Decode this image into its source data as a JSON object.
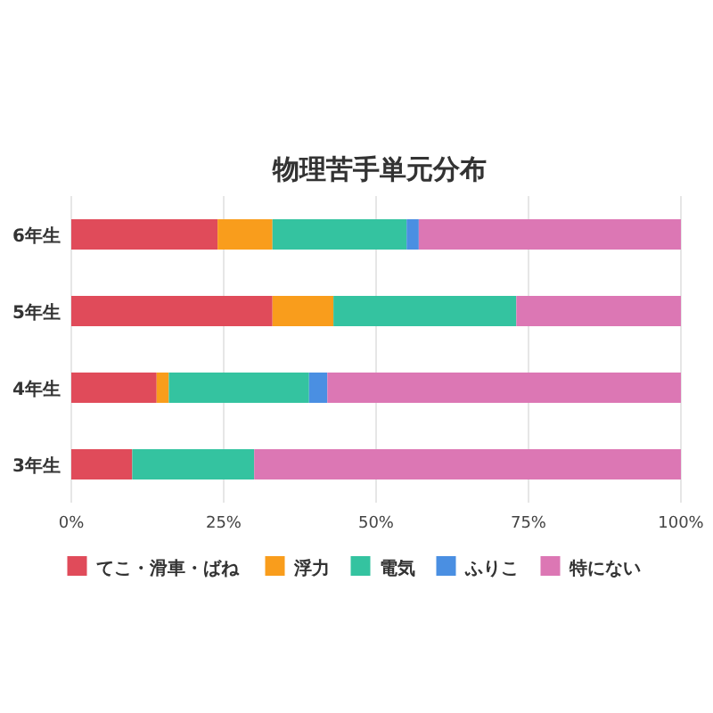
{
  "chart_data": {
    "type": "bar",
    "orientation": "horizontal",
    "stacked": true,
    "title": "物理苦手単元分布",
    "categories": [
      "6年生",
      "5年生",
      "4年生",
      "3年生"
    ],
    "series": [
      {
        "name": "てこ・滑車・ばね",
        "color": "#e04b5a",
        "values": [
          24,
          33,
          14,
          10
        ]
      },
      {
        "name": "浮力",
        "color": "#f99d1c",
        "values": [
          9,
          10,
          2,
          0
        ]
      },
      {
        "name": "電気",
        "color": "#34c3a0",
        "values": [
          22,
          30,
          23,
          20
        ]
      },
      {
        "name": "ふりこ",
        "color": "#4a8fe2",
        "values": [
          2,
          0,
          3,
          0
        ]
      },
      {
        "name": "特にない",
        "color": "#dc77b4",
        "values": [
          43,
          27,
          58,
          70
        ]
      }
    ],
    "xlim": [
      0,
      100
    ],
    "xticks": [
      {
        "value": 0,
        "label": "0%"
      },
      {
        "value": 25,
        "label": "25%"
      },
      {
        "value": 50,
        "label": "50%"
      },
      {
        "value": 75,
        "label": "75%"
      },
      {
        "value": 100,
        "label": "100%"
      }
    ],
    "grid": "x",
    "legend": "bottom"
  }
}
